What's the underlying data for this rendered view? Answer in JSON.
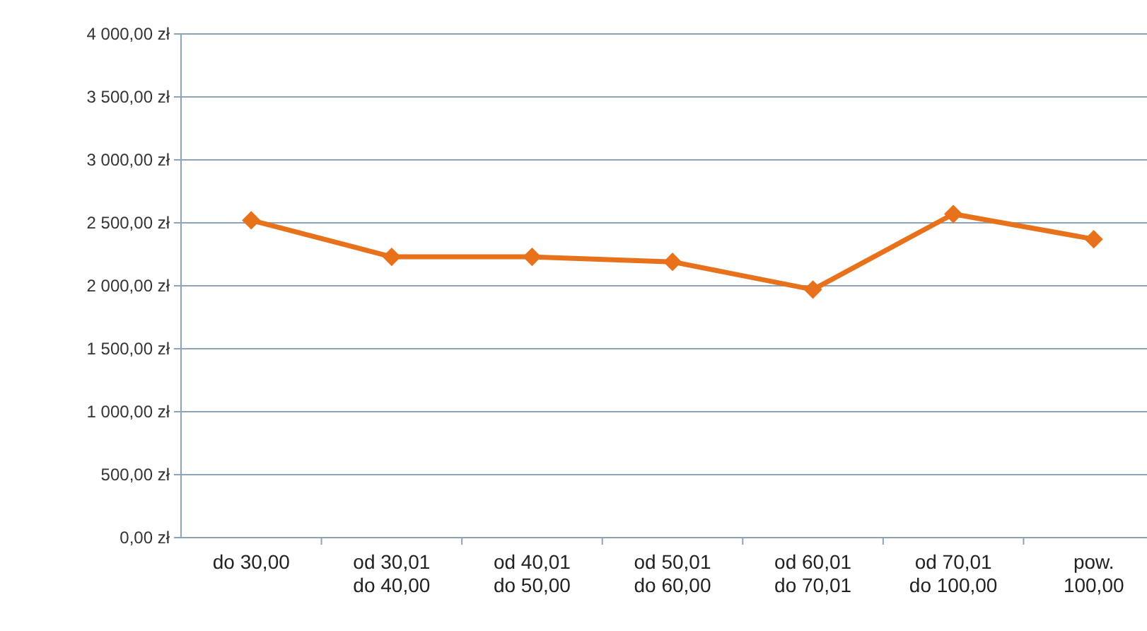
{
  "chart_data": {
    "type": "line",
    "categories": [
      "do 30,00",
      "od 30,01 do 40,00",
      "od 40,01 do 50,00",
      "od 50,01 do 60,00",
      "od 60,01 do 70,01",
      "od 70,01 do 100,00",
      "pow. 100,00"
    ],
    "series": [
      {
        "color": "#e8711c",
        "values": [
          2520,
          2230,
          2230,
          2190,
          1970,
          2570,
          2370
        ]
      }
    ],
    "ylim": [
      0,
      4000
    ],
    "yticks": [
      {
        "value": 0,
        "label": "0,00 zł"
      },
      {
        "value": 500,
        "label": "500,00 zł"
      },
      {
        "value": 1000,
        "label": "1 000,00 zł"
      },
      {
        "value": 1500,
        "label": "1 500,00 zł"
      },
      {
        "value": 2000,
        "label": "2 000,00 zł"
      },
      {
        "value": 2500,
        "label": "2 500,00 zł"
      },
      {
        "value": 3000,
        "label": "3 000,00 zł"
      },
      {
        "value": 3500,
        "label": "3 500,00 zł"
      },
      {
        "value": 4000,
        "label": "4 000,00 zł"
      }
    ],
    "grid": "y",
    "marker": "diamond",
    "line_style": "solid"
  }
}
